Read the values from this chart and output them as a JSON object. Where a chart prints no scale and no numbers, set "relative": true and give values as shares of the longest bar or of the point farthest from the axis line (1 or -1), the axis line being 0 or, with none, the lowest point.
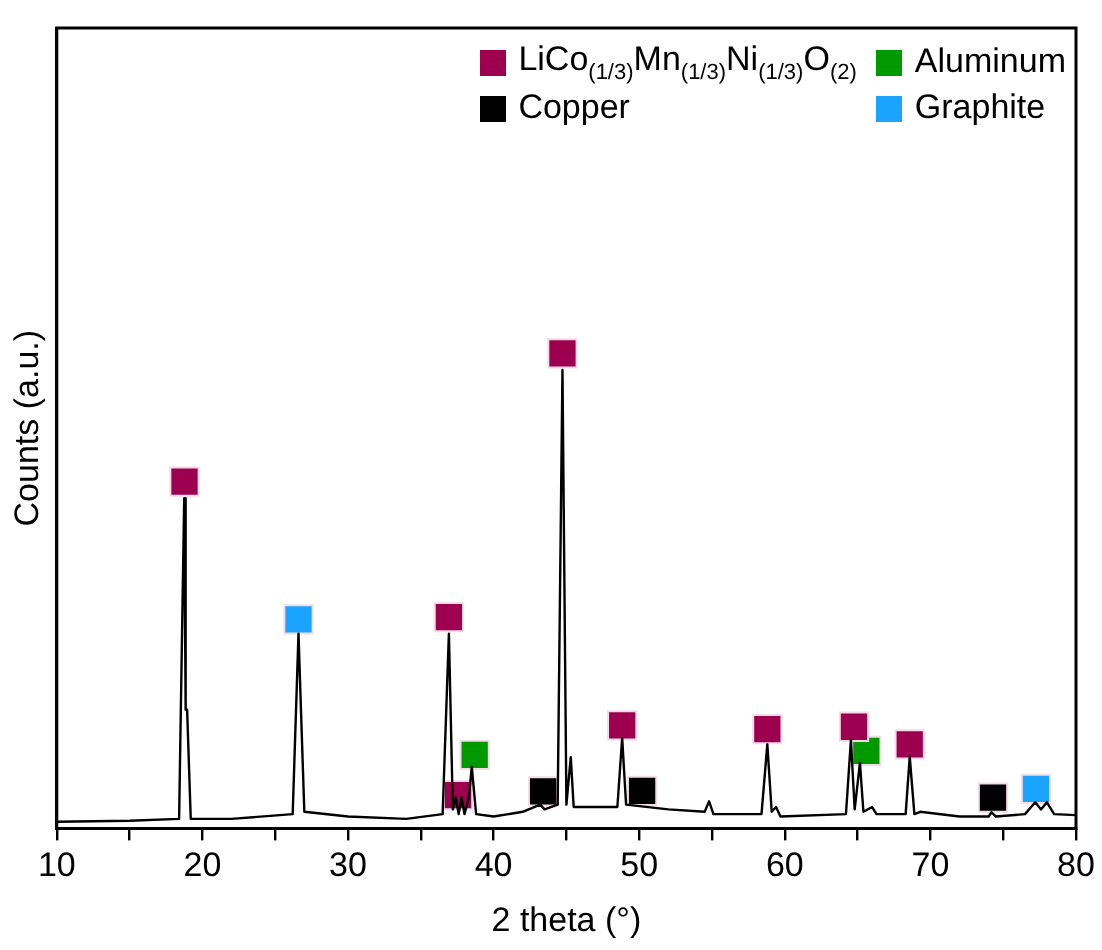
{
  "chart_data": {
    "type": "line",
    "relative": true,
    "xlabel": "2 theta (°)",
    "ylabel": "Counts (a.u.)",
    "xlim": [
      10,
      80
    ],
    "xticks": [
      10,
      {
        "value": 15,
        "label": null
      },
      20,
      {
        "value": 25,
        "label": null
      },
      30,
      {
        "value": 35,
        "label": null
      },
      40,
      {
        "value": 45,
        "label": null
      },
      50,
      {
        "value": 55,
        "label": null
      },
      60,
      {
        "value": 65,
        "label": null
      },
      70,
      {
        "value": 75,
        "label": null
      },
      80
    ],
    "grid": false,
    "legend": "top right",
    "marker": "square",
    "series": [
      {
        "color": "#000000",
        "marker": "none",
        "x": [
          10,
          15,
          18.4,
          18.75,
          18.85,
          18.95,
          19.2,
          22,
          26.2,
          26.6,
          27.0,
          30,
          34,
          36.5,
          36.93,
          37.2,
          37.4,
          37.6,
          37.8,
          38.0,
          38.3,
          38.5,
          38.8,
          40,
          42,
          43.2,
          43.5,
          44.4,
          44.73,
          45.0,
          45.3,
          45.5,
          47,
          48.5,
          48.83,
          49.1,
          52,
          54.5,
          54.8,
          55.1,
          58.4,
          58.8,
          59.1,
          59.4,
          59.7,
          64.2,
          64.54,
          64.8,
          65.16,
          65.4,
          66,
          66.3,
          68.3,
          68.58,
          68.9,
          69.3,
          72,
          74.0,
          74.2,
          74.5,
          76.5,
          77.2,
          77.6,
          78,
          78.5,
          80
        ],
        "values": [
          0.014,
          0.016,
          0.02,
          0.695,
          0.25,
          0.25,
          0.02,
          0.02,
          0.03,
          0.41,
          0.035,
          0.025,
          0.02,
          0.03,
          0.41,
          0.04,
          0.065,
          0.03,
          0.065,
          0.03,
          0.065,
          0.13,
          0.03,
          0.025,
          0.035,
          0.05,
          0.04,
          0.05,
          0.965,
          0.05,
          0.15,
          0.045,
          0.045,
          0.045,
          0.19,
          0.05,
          0.04,
          0.035,
          0.057,
          0.03,
          0.03,
          0.177,
          0.035,
          0.045,
          0.025,
          0.03,
          0.186,
          0.04,
          0.138,
          0.035,
          0.045,
          0.03,
          0.03,
          0.151,
          0.03,
          0.035,
          0.025,
          0.025,
          0.034,
          0.025,
          0.03,
          0.055,
          0.04,
          0.055,
          0.03,
          0.028
        ]
      },
      {
        "type": "scatter",
        "name": "LiCo$_{(1/3)}$Mn$_{(1/3)}$Ni$_{(1/3)}$O$_{(2)}$",
        "color": "#9e0050",
        "x": [
          18.77,
          36.93,
          37.56,
          44.73,
          48.83,
          58.8,
          64.75,
          68.58
        ],
        "values": [
          0.73,
          0.445,
          0.07,
          1.0,
          0.217,
          0.209,
          0.214,
          0.177
        ]
      },
      {
        "type": "scatter",
        "name": "Aluminum",
        "color": "#009900",
        "x": [
          38.7,
          65.6
        ],
        "values": [
          0.155,
          0.163
        ]
      },
      {
        "type": "scatter",
        "name": "Copper",
        "color": "#000000",
        "x": [
          43.4,
          50.2,
          74.3
        ],
        "values": [
          0.078,
          0.079,
          0.065
        ]
      },
      {
        "type": "scatter",
        "name": "Graphite",
        "color": "#1aa3ff",
        "x": [
          26.6,
          77.25
        ],
        "values": [
          0.44,
          0.083
        ]
      }
    ]
  }
}
